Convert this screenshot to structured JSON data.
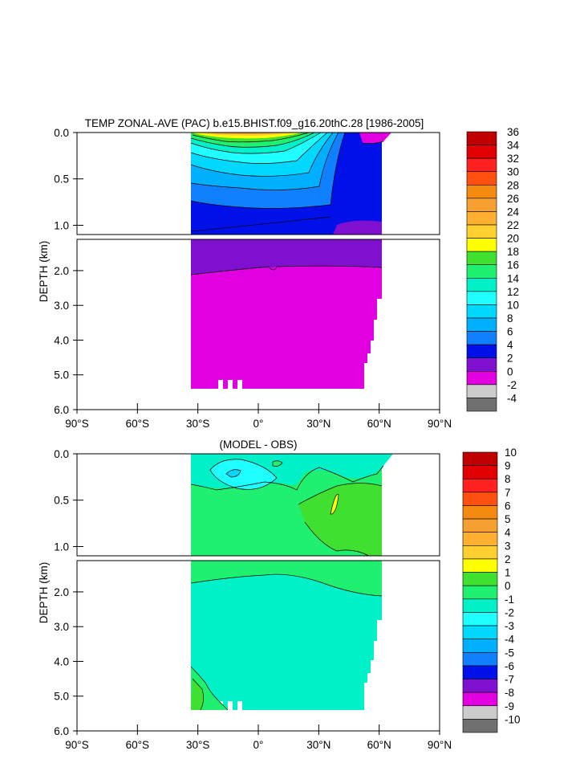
{
  "chart_data": [
    {
      "type": "contour",
      "title": "TEMP ZONAL-AVE (PAC) b.e15.BHIST.f09_g16.20thC.28 [1986-2005]",
      "ylabel": "DEPTH (km)",
      "x_ticks": [
        "90°S",
        "60°S",
        "30°S",
        "0°",
        "30°N",
        "60°N",
        "90°N"
      ],
      "x_tick_values": [
        -90,
        -60,
        -30,
        0,
        30,
        60,
        90
      ],
      "xlim": [
        -90,
        90
      ],
      "upper_panel": {
        "ylim": [
          0,
          1.1
        ],
        "y_ticks": [
          "0.0",
          "0.5",
          "1.0"
        ],
        "y_tick_values": [
          0,
          0.5,
          1.0
        ]
      },
      "lower_panel": {
        "ylim": [
          1.1,
          6.0
        ],
        "y_ticks": [
          "2.0",
          "3.0",
          "4.0",
          "5.0",
          "6.0"
        ],
        "y_tick_values": [
          2,
          3,
          4,
          5,
          6
        ]
      },
      "colorbar": {
        "labels": [
          "36",
          "34",
          "32",
          "30",
          "28",
          "26",
          "24",
          "22",
          "20",
          "18",
          "16",
          "14",
          "12",
          "10",
          "8",
          "6",
          "4",
          "2",
          "0",
          "-2",
          "-4"
        ],
        "colors": [
          "#c00000",
          "#e00000",
          "#ff2020",
          "#ff5010",
          "#f58a10",
          "#f5a030",
          "#ffb030",
          "#ffd030",
          "#ffff00",
          "#40e030",
          "#20f070",
          "#00f0c8",
          "#20ffff",
          "#00d8ff",
          "#00b0ff",
          "#1080ff",
          "#0010e8",
          "#8010d0",
          "#e000e0",
          "#cccccc",
          "#707070"
        ]
      }
    },
    {
      "type": "contour",
      "title": "(MODEL - OBS)",
      "ylabel": "DEPTH (km)",
      "x_ticks": [
        "90°S",
        "60°S",
        "30°S",
        "0°",
        "30°N",
        "60°N",
        "90°N"
      ],
      "x_tick_values": [
        -90,
        -60,
        -30,
        0,
        30,
        60,
        90
      ],
      "xlim": [
        -90,
        90
      ],
      "upper_panel": {
        "ylim": [
          0,
          1.1
        ],
        "y_ticks": [
          "0.0",
          "0.5",
          "1.0"
        ],
        "y_tick_values": [
          0,
          0.5,
          1.0
        ]
      },
      "lower_panel": {
        "ylim": [
          1.1,
          6.0
        ],
        "y_ticks": [
          "2.0",
          "3.0",
          "4.0",
          "5.0",
          "6.0"
        ],
        "y_tick_values": [
          2,
          3,
          4,
          5,
          6
        ]
      },
      "colorbar": {
        "labels": [
          "10",
          "9",
          "8",
          "7",
          "6",
          "5",
          "4",
          "3",
          "2",
          "1",
          "0",
          "-1",
          "-2",
          "-3",
          "-4",
          "-5",
          "-6",
          "-7",
          "-8",
          "-9",
          "-10"
        ],
        "colors": [
          "#c00000",
          "#e00000",
          "#ff2020",
          "#ff5010",
          "#f58a10",
          "#f5a030",
          "#ffb030",
          "#ffd030",
          "#ffff00",
          "#40e030",
          "#20f070",
          "#00f0c8",
          "#20ffff",
          "#00d8ff",
          "#00b0ff",
          "#1080ff",
          "#0010e8",
          "#8010d0",
          "#e000e0",
          "#cccccc",
          "#707070"
        ]
      }
    }
  ]
}
